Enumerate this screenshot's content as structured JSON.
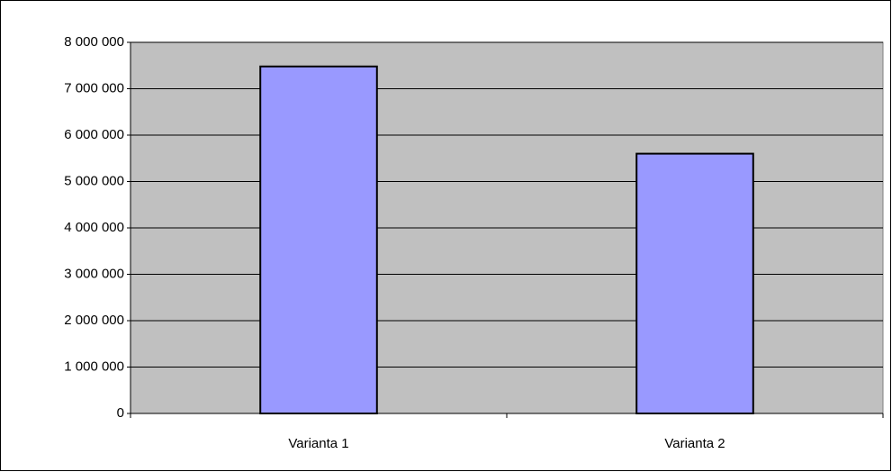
{
  "chart_data": {
    "type": "bar",
    "categories": [
      "Varianta 1",
      "Varianta 2"
    ],
    "values": [
      7480000,
      5600000
    ],
    "color": "#9999ff",
    "ylim": [
      0,
      8000000
    ],
    "yticks": [
      0,
      {
        "value": 1000000,
        "label": "1 000 000"
      },
      {
        "value": 2000000,
        "label": "2 000 000"
      },
      {
        "value": 3000000,
        "label": "3 000 000"
      },
      {
        "value": 4000000,
        "label": "4 000 000"
      },
      {
        "value": 5000000,
        "label": "5 000 000"
      },
      {
        "value": 6000000,
        "label": "6 000 000"
      },
      {
        "value": 7000000,
        "label": "7 000 000"
      },
      {
        "value": 8000000,
        "label": "8 000 000"
      }
    ],
    "grid": true
  }
}
